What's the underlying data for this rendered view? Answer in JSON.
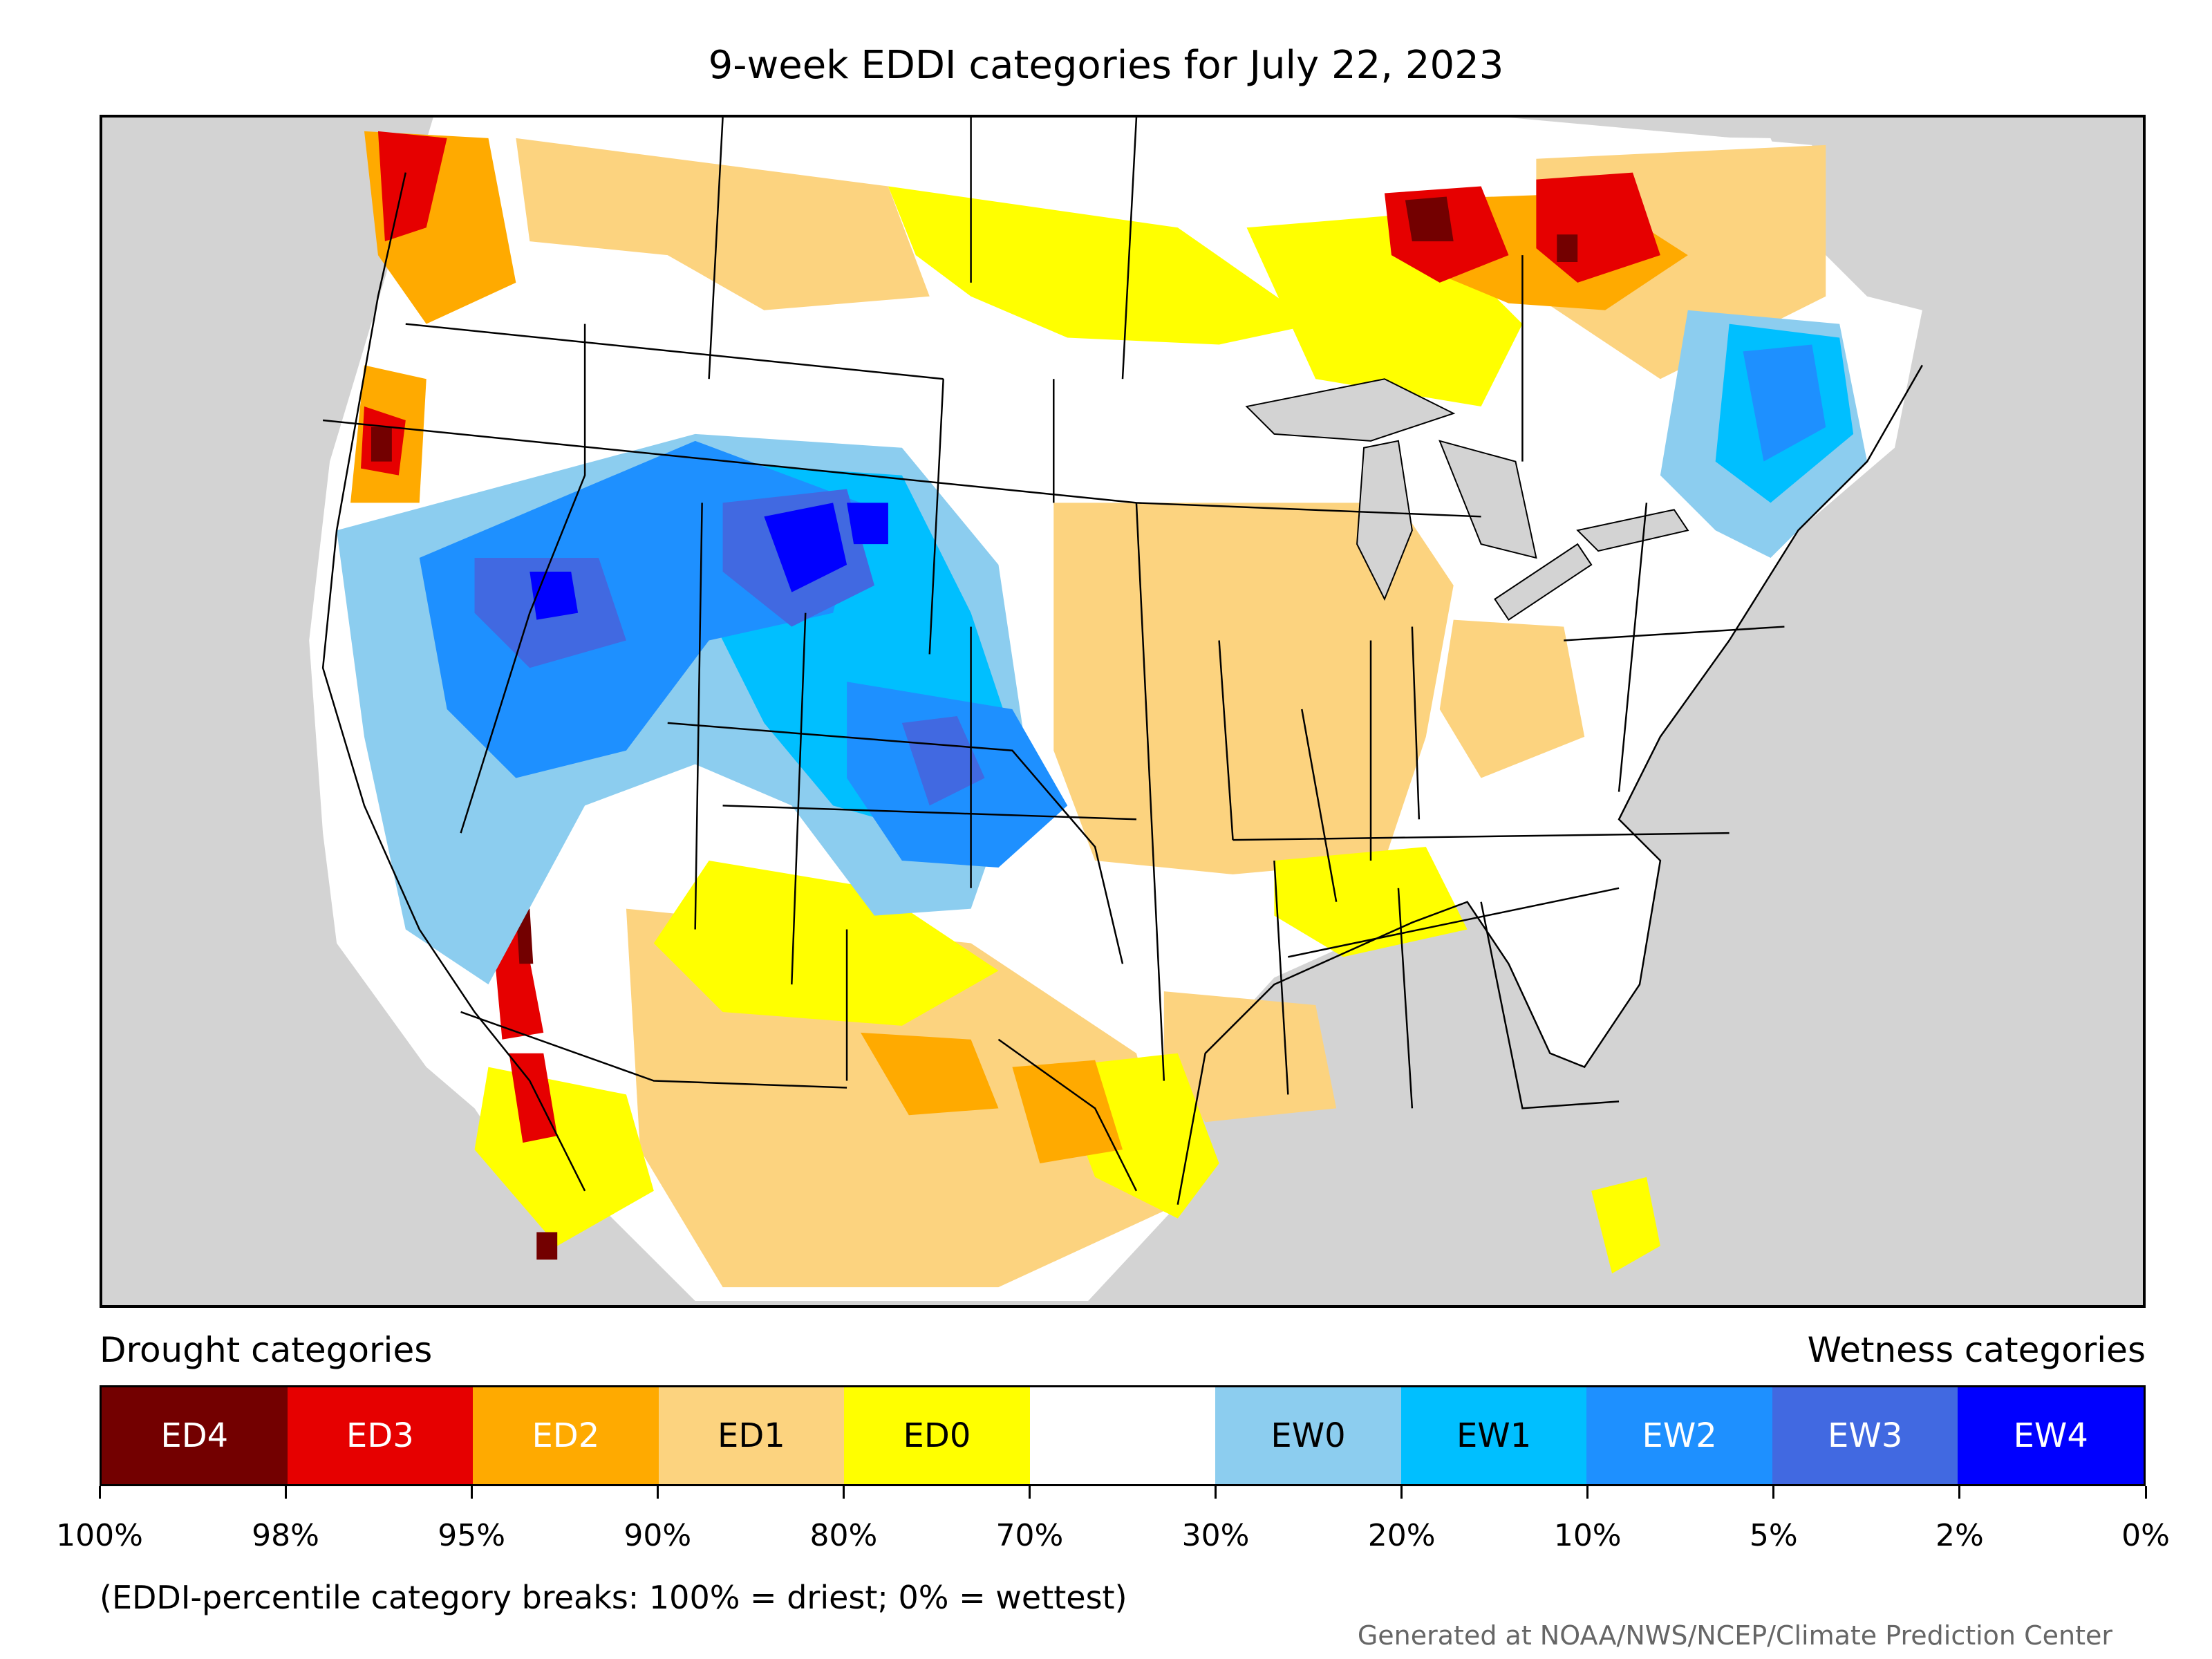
{
  "title": "9-week EDDI categories for July 22, 2023",
  "legend": {
    "drought_heading": "Drought categories",
    "wetness_heading": "Wetness categories",
    "categories": [
      {
        "label": "ED4",
        "color": "#730000",
        "text_color": "#ffffff"
      },
      {
        "label": "ED3",
        "color": "#e60000",
        "text_color": "#ffffff"
      },
      {
        "label": "ED2",
        "color": "#ffaa00",
        "text_color": "#ffffff"
      },
      {
        "label": "ED1",
        "color": "#fcd37f",
        "text_color": "#000000"
      },
      {
        "label": "ED0",
        "color": "#ffff00",
        "text_color": "#000000"
      },
      {
        "label": "",
        "color": "#ffffff",
        "text_color": "#000000"
      },
      {
        "label": "EW0",
        "color": "#8ccdef",
        "text_color": "#000000"
      },
      {
        "label": "EW1",
        "color": "#00bfff",
        "text_color": "#000000"
      },
      {
        "label": "EW2",
        "color": "#1e90ff",
        "text_color": "#ffffff"
      },
      {
        "label": "EW3",
        "color": "#4169e1",
        "text_color": "#ffffff"
      },
      {
        "label": "EW4",
        "color": "#0000ff",
        "text_color": "#ffffff"
      }
    ],
    "ticks": [
      "100%",
      "98%",
      "95%",
      "90%",
      "80%",
      "70%",
      "30%",
      "20%",
      "10%",
      "5%",
      "2%",
      "0%"
    ]
  },
  "note": "(EDDI-percentile category breaks: 100% = driest; 0% = wettest)",
  "credit": "Generated at NOAA/NWS/NCEP/Climate Prediction Center",
  "colors": {
    "ocean_land_outside": "#d3d3d3",
    "borders": "#000000",
    "lakes": "#d3d3d3"
  }
}
